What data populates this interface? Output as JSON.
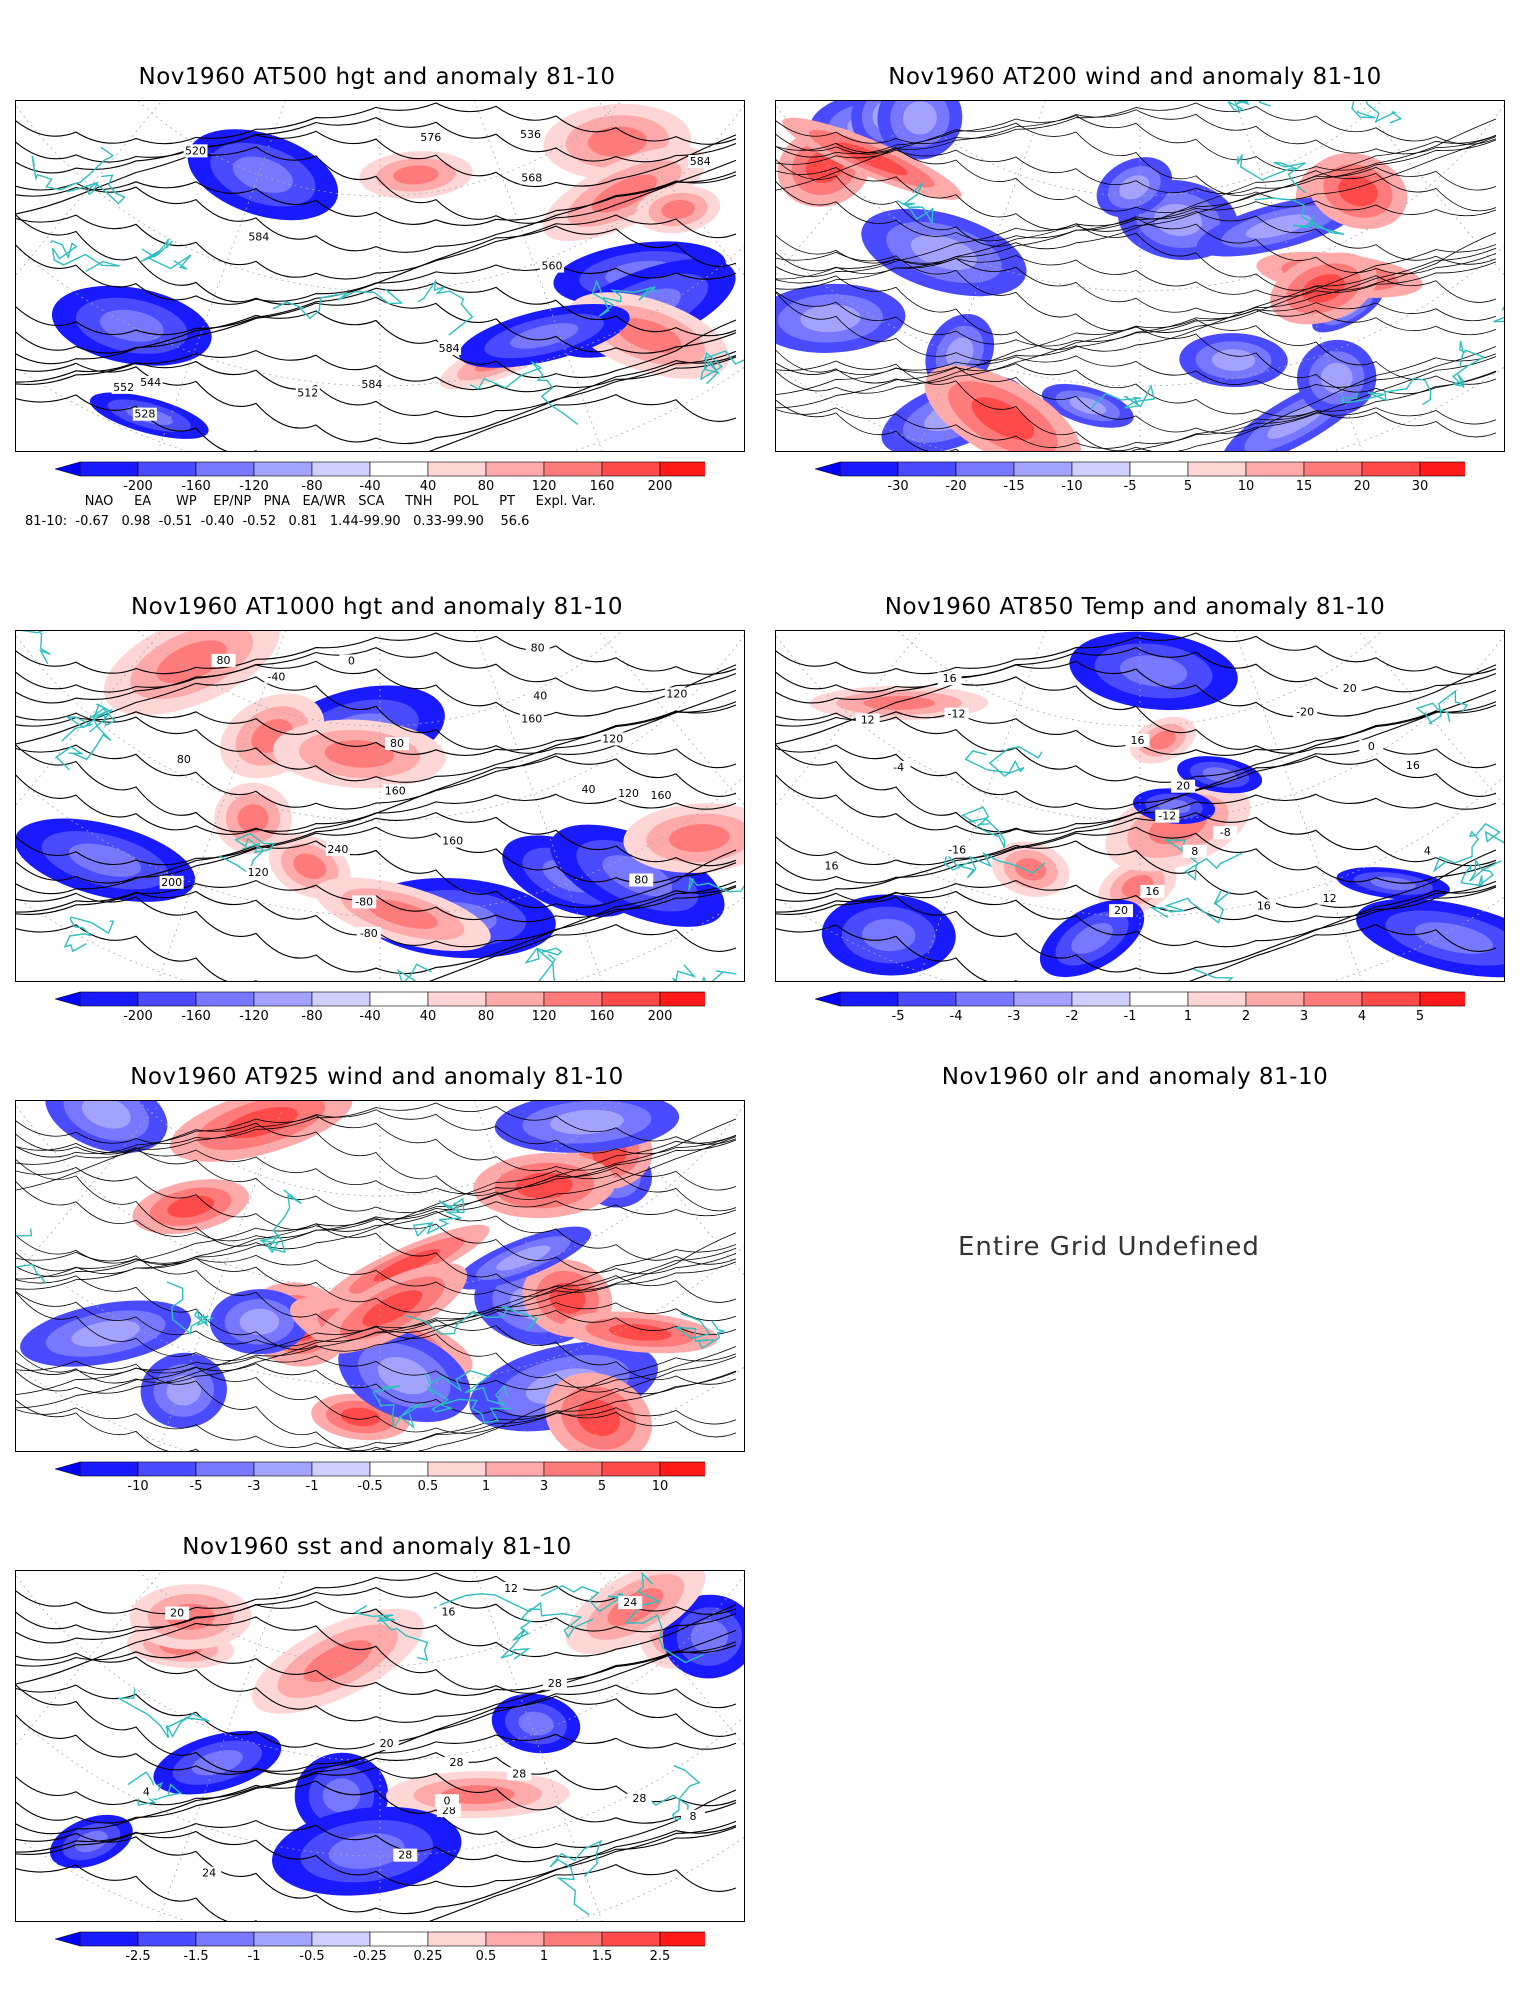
{
  "panels": [
    {
      "id": "p500",
      "title": "Nov1960 AT500 hgt and anomaly 81-10",
      "kind": "hgt",
      "contour_labels": [
        "512",
        "520",
        "536",
        "528",
        "544",
        "552",
        "560",
        "568",
        "576",
        "584",
        "584",
        "584",
        "584"
      ],
      "colorbar": [
        "-200",
        "-160",
        "-120",
        "-80",
        "-40",
        "40",
        "80",
        "120",
        "160",
        "200"
      ]
    },
    {
      "id": "p200",
      "title": "Nov1960 AT200 wind and anomaly 81-10",
      "kind": "wind",
      "contour_labels": [],
      "colorbar": [
        "-30",
        "-20",
        "-15",
        "-10",
        "-5",
        "5",
        "10",
        "15",
        "20",
        "30"
      ]
    },
    {
      "id": "p1000",
      "title": "Nov1960 AT1000 hgt and anomaly 81-10",
      "kind": "hgt",
      "contour_labels": [
        "-80",
        "120",
        "40",
        "160",
        "80",
        "0",
        "-40",
        "-80",
        "40",
        "80",
        "240",
        "200",
        "160",
        "160",
        "120",
        "160",
        "120",
        "80",
        "120",
        "80",
        "80"
      ],
      "colorbar": [
        "-200",
        "-160",
        "-120",
        "-80",
        "-40",
        "40",
        "80",
        "120",
        "160",
        "200"
      ]
    },
    {
      "id": "p850",
      "title": "Nov1960 AT850 Temp and anomaly 81-10",
      "kind": "temp",
      "contour_labels": [
        "16",
        "-16",
        "-20",
        "-12",
        "-12",
        "-8",
        "-4",
        "0",
        "4",
        "8",
        "16",
        "16",
        "16",
        "12",
        "16",
        "20",
        "12",
        "20",
        "20",
        "16"
      ],
      "colorbar": [
        "-5",
        "-4",
        "-3",
        "-2",
        "-1",
        "1",
        "2",
        "3",
        "4",
        "5"
      ]
    },
    {
      "id": "p925",
      "title": "Nov1960 AT925 wind and anomaly 81-10",
      "kind": "wind",
      "contour_labels": [],
      "colorbar": [
        "-10",
        "-5",
        "-3",
        "-1",
        "-0.5",
        "0.5",
        "1",
        "3",
        "5",
        "10"
      ]
    },
    {
      "id": "psst",
      "title": "Nov1960 sst and anomaly 81-10",
      "kind": "sst",
      "contour_labels": [
        "28",
        "24",
        "28",
        "0",
        "4",
        "8",
        "12",
        "16",
        "20",
        "24",
        "28",
        "28",
        "28",
        "20",
        "28"
      ],
      "colorbar": [
        "-2.5",
        "-1.5",
        "-1",
        "-0.5",
        "-0.25",
        "0.25",
        "0.5",
        "1",
        "1.5",
        "2.5"
      ]
    }
  ],
  "olr": {
    "title": "Nov1960 olr and anomaly 81-10",
    "message": "Entire Grid Undefined"
  },
  "teleconnection": {
    "header": "      NAO     EA      WP    EP/NP   PNA   EA/WR   SCA     TNH     POL     PT     Expl. Var.",
    "values": "81-10:  -0.67   0.98  -0.51  -0.40  -0.52   0.81   1.44-99.90   0.33-99.90    56.6"
  },
  "colors": {
    "coast": "#2fbfbf",
    "contour": "#000000",
    "grid": "#aaaaaa",
    "neg": [
      "#1a1aff",
      "#4a4aff",
      "#7777ff",
      "#a3a3ff",
      "#d0d0ff"
    ],
    "pos": [
      "#ffd6d6",
      "#ffaaaa",
      "#ff7a7a",
      "#ff4a4a",
      "#ff1a1a"
    ]
  }
}
